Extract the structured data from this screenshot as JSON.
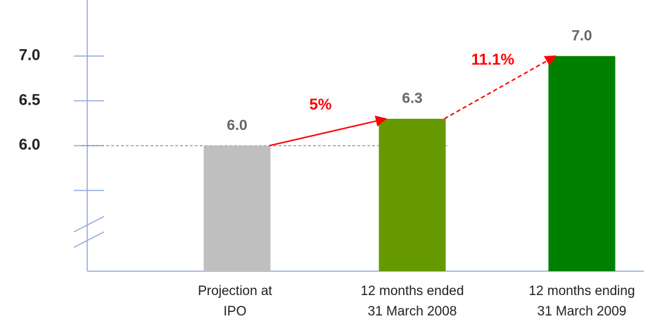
{
  "chart_data": {
    "type": "bar",
    "categories": [
      [
        "Projection at",
        "IPO"
      ],
      [
        "12 months ended",
        "31 March 2008"
      ],
      [
        "12 months ending",
        "31 March 2009"
      ]
    ],
    "values": [
      6.0,
      6.3,
      7.0
    ],
    "value_labels": [
      "6.0",
      "6.3",
      "7.0"
    ],
    "colors": [
      "#bfbfbf",
      "#669900",
      "#008000"
    ],
    "ylim": [
      4.6,
      7.625
    ],
    "yticks": [
      {
        "value": 5.5,
        "label": null
      },
      {
        "value": 6,
        "label": "6.0"
      },
      {
        "value": 6.5,
        "label": "6.5"
      },
      {
        "value": 7,
        "label": "7.0"
      }
    ],
    "axis_break": true,
    "reference_line": 6,
    "annotations": [
      {
        "text": "5%",
        "from": 0,
        "to": 1,
        "style": "solid",
        "color": "#ff0000"
      },
      {
        "text": "11.1%",
        "from": 1,
        "to": 2,
        "style": "dashed",
        "color": "#ff0000"
      }
    ]
  }
}
